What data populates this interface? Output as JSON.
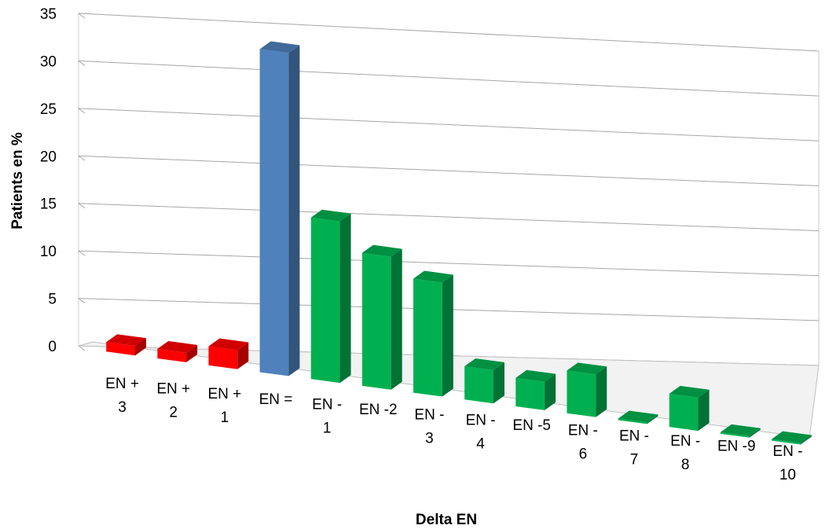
{
  "chart_data": {
    "type": "bar",
    "title": "",
    "xlabel": "Delta EN",
    "ylabel": "Patients en %",
    "ylim": [
      0,
      35
    ],
    "yticks": [
      0,
      5,
      10,
      15,
      20,
      25,
      30,
      35
    ],
    "grid": true,
    "legend": "none",
    "categories": [
      [
        "EN +",
        "3"
      ],
      [
        "EN +",
        "2"
      ],
      [
        "EN +",
        "1"
      ],
      [
        "EN ="
      ],
      [
        "EN -",
        "1"
      ],
      [
        "EN -2"
      ],
      [
        "EN -",
        "3"
      ],
      [
        "EN -",
        "4"
      ],
      [
        "EN -5"
      ],
      [
        "EN -",
        "6"
      ],
      [
        "EN -",
        "7"
      ],
      [
        "EN -",
        "8"
      ],
      [
        "EN -9"
      ],
      [
        "EN -",
        "10"
      ]
    ],
    "values": [
      1,
      1,
      2,
      34,
      17,
      14,
      12,
      3.5,
      3,
      4.5,
      0,
      3.5,
      0,
      0
    ],
    "bar_colors": [
      "#ff0000",
      "#ff0000",
      "#ff0000",
      "#4f81bd",
      "#00b050",
      "#00b050",
      "#00b050",
      "#00b050",
      "#00b050",
      "#00b050",
      "#00b050",
      "#00b050",
      "#00b050",
      "#00b050"
    ]
  }
}
